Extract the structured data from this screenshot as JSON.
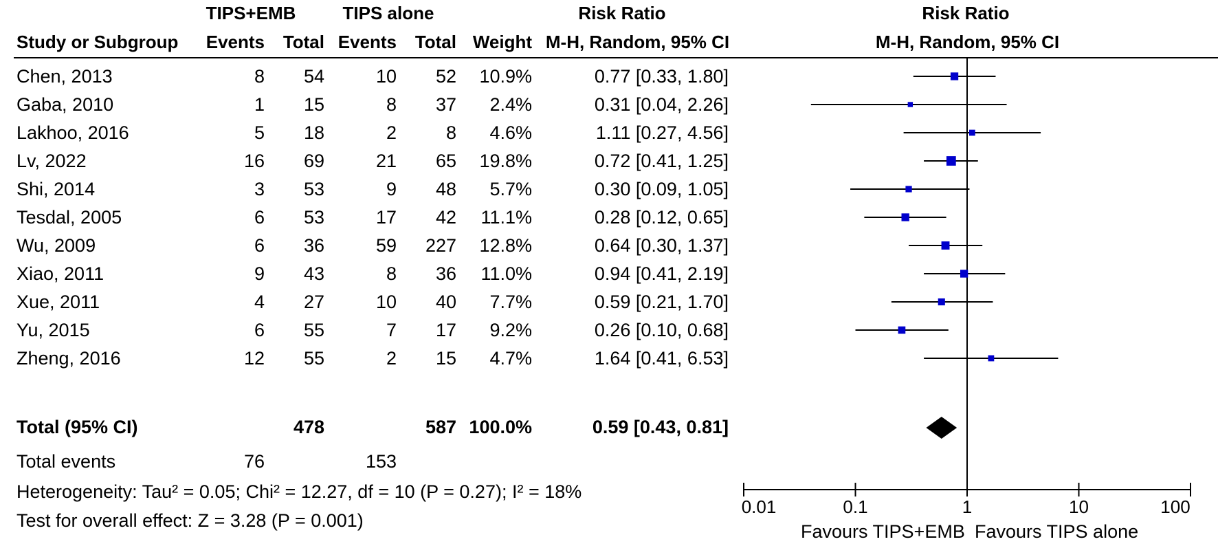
{
  "headers": {
    "group_exp": "TIPS+EMB",
    "group_ctrl": "TIPS alone",
    "risk_ratio": "Risk Ratio",
    "risk_ratio_plot": "Risk Ratio",
    "study": "Study or Subgroup",
    "events_exp": "Events",
    "total_exp": "Total",
    "events_ctrl": "Events",
    "total_ctrl": "Total",
    "weight": "Weight",
    "method": "M-H, Random, 95% CI",
    "method_plot": "M-H, Random, 95% CI"
  },
  "total_row": {
    "label": "Total (95% CI)",
    "total_exp": "478",
    "total_ctrl": "587",
    "weight": "100.0%",
    "ci": "0.59 [0.43, 0.81]"
  },
  "total_events": {
    "label": "Total events",
    "exp": "76",
    "ctrl": "153"
  },
  "heterogeneity": "Heterogeneity: Tau² = 0.05; Chi² = 12.27, df = 10 (P = 0.27); I² = 18%",
  "overall_effect": "Test for overall effect: Z = 3.28 (P = 0.001)",
  "axis": {
    "favours_left": "Favours TIPS+EMB",
    "favours_right": "Favours TIPS alone"
  },
  "colors": {
    "marker": "#0000cc",
    "line": "#000000"
  },
  "chart_data": {
    "type": "forest",
    "scale": "log",
    "xlim": [
      0.01,
      100
    ],
    "ticks": [
      0.01,
      0.1,
      1,
      10,
      100
    ],
    "tick_labels": [
      "0.01",
      "0.1",
      "1",
      "10",
      "100"
    ],
    "null_line": 1,
    "studies": [
      {
        "study": "Chen, 2013",
        "events_exp": "8",
        "total_exp": "54",
        "events_ctrl": "10",
        "total_ctrl": "52",
        "weight": "10.9%",
        "ci_text": "0.77 [0.33, 1.80]",
        "rr": 0.77,
        "lo": 0.33,
        "hi": 1.8,
        "w": 10.9
      },
      {
        "study": "Gaba, 2010",
        "events_exp": "1",
        "total_exp": "15",
        "events_ctrl": "8",
        "total_ctrl": "37",
        "weight": "2.4%",
        "ci_text": "0.31 [0.04, 2.26]",
        "rr": 0.31,
        "lo": 0.04,
        "hi": 2.26,
        "w": 2.4
      },
      {
        "study": "Lakhoo, 2016",
        "events_exp": "5",
        "total_exp": "18",
        "events_ctrl": "2",
        "total_ctrl": "8",
        "weight": "4.6%",
        "ci_text": "1.11 [0.27, 4.56]",
        "rr": 1.11,
        "lo": 0.27,
        "hi": 4.56,
        "w": 4.6
      },
      {
        "study": "Lv, 2022",
        "events_exp": "16",
        "total_exp": "69",
        "events_ctrl": "21",
        "total_ctrl": "65",
        "weight": "19.8%",
        "ci_text": "0.72 [0.41, 1.25]",
        "rr": 0.72,
        "lo": 0.41,
        "hi": 1.25,
        "w": 19.8
      },
      {
        "study": "Shi, 2014",
        "events_exp": "3",
        "total_exp": "53",
        "events_ctrl": "9",
        "total_ctrl": "48",
        "weight": "5.7%",
        "ci_text": "0.30 [0.09, 1.05]",
        "rr": 0.3,
        "lo": 0.09,
        "hi": 1.05,
        "w": 5.7
      },
      {
        "study": "Tesdal, 2005",
        "events_exp": "6",
        "total_exp": "53",
        "events_ctrl": "17",
        "total_ctrl": "42",
        "weight": "11.1%",
        "ci_text": "0.28 [0.12, 0.65]",
        "rr": 0.28,
        "lo": 0.12,
        "hi": 0.65,
        "w": 11.1
      },
      {
        "study": "Wu, 2009",
        "events_exp": "6",
        "total_exp": "36",
        "events_ctrl": "59",
        "total_ctrl": "227",
        "weight": "12.8%",
        "ci_text": "0.64 [0.30, 1.37]",
        "rr": 0.64,
        "lo": 0.3,
        "hi": 1.37,
        "w": 12.8
      },
      {
        "study": "Xiao, 2011",
        "events_exp": "9",
        "total_exp": "43",
        "events_ctrl": "8",
        "total_ctrl": "36",
        "weight": "11.0%",
        "ci_text": "0.94 [0.41, 2.19]",
        "rr": 0.94,
        "lo": 0.41,
        "hi": 2.19,
        "w": 11.0
      },
      {
        "study": "Xue, 2011",
        "events_exp": "4",
        "total_exp": "27",
        "events_ctrl": "10",
        "total_ctrl": "40",
        "weight": "7.7%",
        "ci_text": "0.59 [0.21, 1.70]",
        "rr": 0.59,
        "lo": 0.21,
        "hi": 1.7,
        "w": 7.7
      },
      {
        "study": "Yu, 2015",
        "events_exp": "6",
        "total_exp": "55",
        "events_ctrl": "7",
        "total_ctrl": "17",
        "weight": "9.2%",
        "ci_text": "0.26 [0.10, 0.68]",
        "rr": 0.26,
        "lo": 0.1,
        "hi": 0.68,
        "w": 9.2
      },
      {
        "study": "Zheng, 2016",
        "events_exp": "12",
        "total_exp": "55",
        "events_ctrl": "2",
        "total_ctrl": "15",
        "weight": "4.7%",
        "ci_text": "1.64 [0.41, 6.53]",
        "rr": 1.64,
        "lo": 0.41,
        "hi": 6.53,
        "w": 4.7
      }
    ],
    "pooled": {
      "rr": 0.59,
      "lo": 0.43,
      "hi": 0.81
    }
  }
}
